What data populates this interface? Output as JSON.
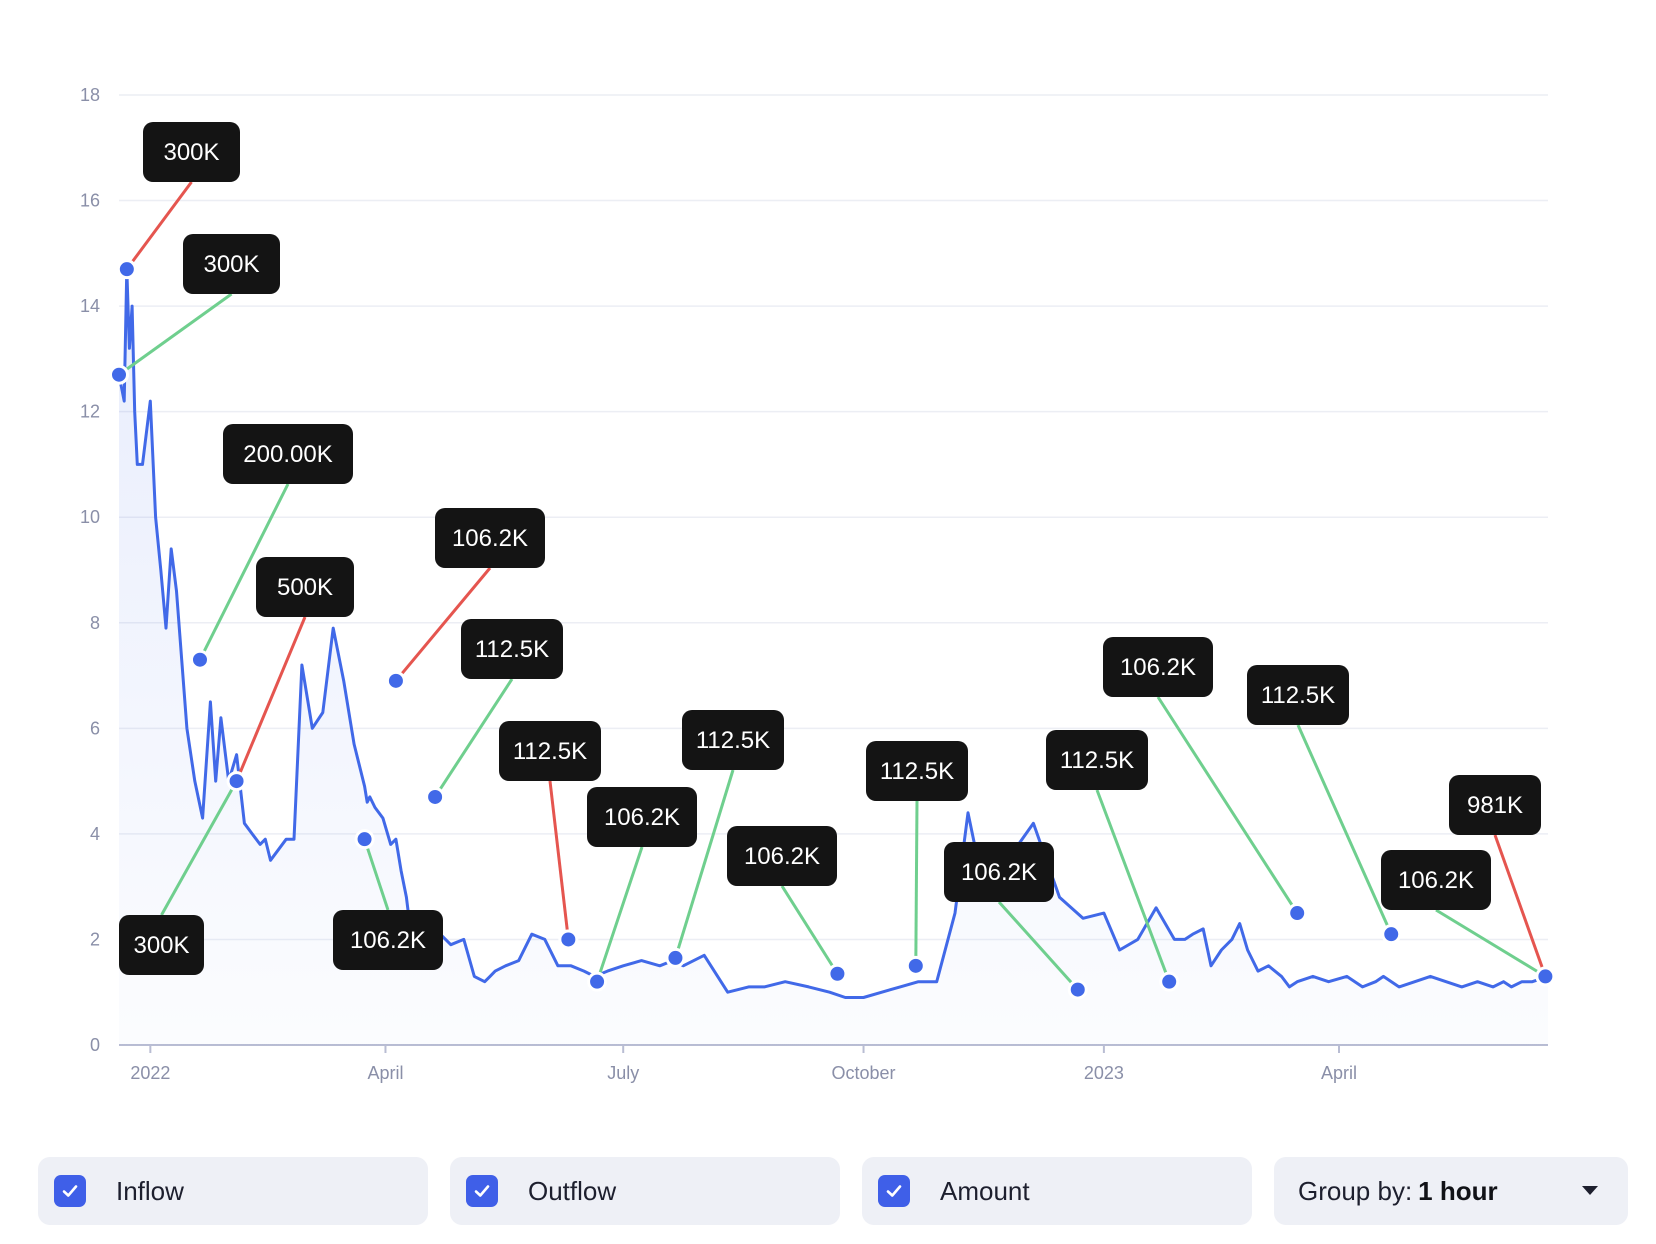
{
  "chart_data": {
    "type": "line",
    "title": "",
    "xlabel": "",
    "ylabel": "",
    "ylim": [
      0,
      18
    ],
    "yticks": [
      0,
      2,
      4,
      6,
      8,
      10,
      12,
      14,
      16,
      18
    ],
    "xlim": [
      "2021-12-20",
      "2023-06-20"
    ],
    "xticks": [
      {
        "date": "2022-01-01",
        "label": "2022"
      },
      {
        "date": "2022-04-01",
        "label": "April"
      },
      {
        "date": "2022-07-01",
        "label": "July"
      },
      {
        "date": "2022-10-01",
        "label": "October"
      },
      {
        "date": "2023-01-01",
        "label": "2023"
      },
      {
        "date": "2023-04-01",
        "label": "April"
      }
    ],
    "grid": true,
    "line_color": "#4169e8",
    "inflow_color": "#6fcf8e",
    "outflow_color": "#e5554f",
    "series": [
      {
        "x": [
          "2021-12-20",
          "2021-12-22",
          "2021-12-23",
          "2021-12-24",
          "2021-12-25",
          "2021-12-26",
          "2021-12-27",
          "2021-12-29",
          "2022-01-01",
          "2022-01-03",
          "2022-01-05",
          "2022-01-07",
          "2022-01-09",
          "2022-01-11",
          "2022-01-13",
          "2022-01-15",
          "2022-01-18",
          "2022-01-21",
          "2022-01-24",
          "2022-01-26",
          "2022-01-28",
          "2022-01-31",
          "2022-02-03",
          "2022-02-06",
          "2022-02-09",
          "2022-02-12",
          "2022-02-14",
          "2022-02-16",
          "2022-02-19",
          "2022-02-22",
          "2022-02-25",
          "2022-02-28",
          "2022-03-04",
          "2022-03-08",
          "2022-03-12",
          "2022-03-16",
          "2022-03-20",
          "2022-03-24",
          "2022-03-25",
          "2022-03-26",
          "2022-03-28",
          "2022-03-31",
          "2022-04-03",
          "2022-04-05",
          "2022-04-07",
          "2022-04-09",
          "2022-04-12",
          "2022-04-15",
          "2022-04-18",
          "2022-04-22",
          "2022-04-26",
          "2022-05-01",
          "2022-05-05",
          "2022-05-09",
          "2022-05-11",
          "2022-05-13",
          "2022-05-17",
          "2022-05-22",
          "2022-05-27",
          "2022-06-01",
          "2022-06-06",
          "2022-06-11",
          "2022-06-16",
          "2022-06-20",
          "2022-06-25",
          "2022-07-01",
          "2022-07-08",
          "2022-07-15",
          "2022-07-20",
          "2022-07-24",
          "2022-08-01",
          "2022-08-10",
          "2022-08-18",
          "2022-08-24",
          "2022-09-01",
          "2022-09-10",
          "2022-09-18",
          "2022-09-24",
          "2022-10-01",
          "2022-10-08",
          "2022-10-15",
          "2022-10-22",
          "2022-10-29",
          "2022-11-05",
          "2022-11-10",
          "2022-11-15",
          "2022-11-25",
          "2022-12-05",
          "2022-12-15",
          "2022-12-24",
          "2023-01-01",
          "2023-01-07",
          "2023-01-14",
          "2023-01-21",
          "2023-01-28",
          "2023-02-01",
          "2023-02-04",
          "2023-02-08",
          "2023-02-11",
          "2023-02-15",
          "2023-02-19",
          "2023-02-22",
          "2023-02-25",
          "2023-03-01",
          "2023-03-05",
          "2023-03-10",
          "2023-03-13",
          "2023-03-16",
          "2023-03-22",
          "2023-03-28",
          "2023-04-04",
          "2023-04-10",
          "2023-04-15",
          "2023-04-18",
          "2023-04-24",
          "2023-04-30",
          "2023-05-06",
          "2023-05-12",
          "2023-05-18",
          "2023-05-24",
          "2023-05-30",
          "2023-06-03",
          "2023-06-06",
          "2023-06-10",
          "2023-06-14",
          "2023-06-20"
        ],
        "y": [
          12.7,
          12.2,
          14.7,
          13.2,
          14.0,
          12.0,
          11.0,
          11.0,
          12.2,
          10.0,
          9.0,
          7.9,
          9.4,
          8.6,
          7.3,
          6.0,
          5.0,
          4.3,
          6.5,
          5.0,
          6.2,
          5.0,
          5.5,
          4.2,
          4.0,
          3.8,
          3.9,
          3.5,
          3.7,
          3.9,
          3.9,
          7.2,
          6.0,
          6.3,
          7.9,
          6.9,
          5.7,
          4.9,
          4.6,
          4.7,
          4.5,
          4.3,
          3.8,
          3.9,
          3.3,
          2.8,
          1.6,
          2.2,
          2.0,
          2.1,
          1.9,
          2.0,
          1.3,
          1.2,
          1.3,
          1.4,
          1.5,
          1.6,
          2.1,
          2.0,
          1.5,
          1.5,
          1.4,
          1.3,
          1.4,
          1.5,
          1.6,
          1.5,
          1.6,
          1.5,
          1.7,
          1.0,
          1.1,
          1.1,
          1.2,
          1.1,
          1.0,
          0.9,
          0.9,
          1.0,
          1.1,
          1.2,
          1.2,
          2.5,
          4.4,
          3.2,
          3.5,
          4.2,
          2.8,
          2.4,
          2.5,
          1.8,
          2.0,
          2.6,
          2.0,
          2.0,
          2.1,
          2.2,
          1.5,
          1.8,
          2.0,
          2.3,
          1.8,
          1.4,
          1.5,
          1.3,
          1.1,
          1.2,
          1.3,
          1.2,
          1.3,
          1.1,
          1.2,
          1.3,
          1.1,
          1.2,
          1.3,
          1.2,
          1.1,
          1.2,
          1.1,
          1.2,
          1.1,
          1.2,
          1.2,
          1.3
        ]
      }
    ],
    "markers": [
      {
        "date": "2021-12-20",
        "y": 12.7
      },
      {
        "date": "2021-12-23",
        "y": 14.7
      },
      {
        "date": "2022-01-20",
        "y": 7.3
      },
      {
        "date": "2022-02-03",
        "y": 5.0
      },
      {
        "date": "2022-03-24",
        "y": 3.9
      },
      {
        "date": "2022-04-05",
        "y": 6.9
      },
      {
        "date": "2022-04-20",
        "y": 4.7
      },
      {
        "date": "2022-06-10",
        "y": 2.0
      },
      {
        "date": "2022-06-21",
        "y": 1.2
      },
      {
        "date": "2022-07-21",
        "y": 1.65
      },
      {
        "date": "2022-09-21",
        "y": 1.35
      },
      {
        "date": "2022-10-21",
        "y": 1.5
      },
      {
        "date": "2022-12-22",
        "y": 1.05
      },
      {
        "date": "2023-01-26",
        "y": 1.2
      },
      {
        "date": "2023-03-16",
        "y": 2.5
      },
      {
        "date": "2023-04-21",
        "y": 2.1
      },
      {
        "date": "2023-06-19",
        "y": 1.3
      }
    ],
    "annotations": [
      {
        "label": "300K",
        "flow": "outflow",
        "marker": 1
      },
      {
        "label": "300K",
        "flow": "inflow",
        "marker": 0
      },
      {
        "label": "200.00K",
        "flow": "inflow",
        "marker": 2
      },
      {
        "label": "500K",
        "flow": "outflow",
        "marker": 3
      },
      {
        "label": "300K",
        "flow": "inflow",
        "marker": 3
      },
      {
        "label": "106.2K",
        "flow": "outflow",
        "marker": 5
      },
      {
        "label": "112.5K",
        "flow": "inflow",
        "marker": 6
      },
      {
        "label": "106.2K",
        "flow": "inflow",
        "marker": 4
      },
      {
        "label": "112.5K",
        "flow": "outflow",
        "marker": 7
      },
      {
        "label": "106.2K",
        "flow": "inflow",
        "marker": 8
      },
      {
        "label": "112.5K",
        "flow": "inflow",
        "marker": 9
      },
      {
        "label": "106.2K",
        "flow": "inflow",
        "marker": 10
      },
      {
        "label": "112.5K",
        "flow": "inflow",
        "marker": 11
      },
      {
        "label": "106.2K",
        "flow": "inflow",
        "marker": 12
      },
      {
        "label": "112.5K",
        "flow": "inflow",
        "marker": 13
      },
      {
        "label": "106.2K",
        "flow": "inflow",
        "marker": 14
      },
      {
        "label": "112.5K",
        "flow": "inflow",
        "marker": 15
      },
      {
        "label": "106.2K",
        "flow": "inflow",
        "marker": 16
      },
      {
        "label": "981K",
        "flow": "outflow",
        "marker": 16
      }
    ]
  },
  "controls": {
    "inflow": {
      "label": "Inflow",
      "checked": true
    },
    "outflow": {
      "label": "Outflow",
      "checked": true
    },
    "amount": {
      "label": "Amount",
      "checked": true
    },
    "group_by": {
      "prefix": "Group by:",
      "value": "1 hour"
    }
  },
  "colors": {
    "accent": "#3f5fe8",
    "badge_bg": "#141414",
    "control_bg": "#eef0f6"
  }
}
